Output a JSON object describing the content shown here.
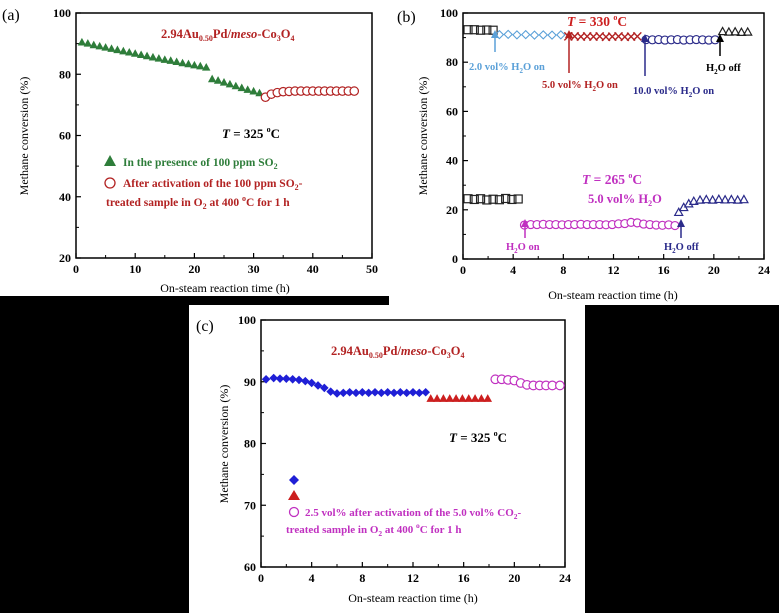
{
  "chart_data": [
    {
      "panel": "(a)",
      "type": "scatter",
      "title": "2.94Au0.50Pd/meso-Co3O4",
      "title_parts": {
        "a": "2.94Au",
        "b": "0.50",
        "c": "Pd/",
        "d": "meso",
        "e": "-Co",
        "f": "3",
        "g": "O",
        "h": "4"
      },
      "xlabel": "On-steam reaction time (h)",
      "ylabel": "Methane conversion (%)",
      "xlim": [
        0,
        50
      ],
      "ylim": [
        20,
        100
      ],
      "xticks": [
        0,
        10,
        20,
        30,
        40,
        50
      ],
      "yticks": [
        20,
        40,
        60,
        80,
        100
      ],
      "annotation": {
        "t": "T",
        "eq": " = 325 ",
        "deg": "o",
        "unit": "C"
      },
      "series": [
        {
          "name": "In the presence of 100 ppm SO2",
          "name_parts": {
            "a": "In the presence of 100 ppm SO",
            "b": "2"
          },
          "marker": "triangle",
          "color": "#2e7d3a",
          "x": [
            1,
            2,
            3,
            4,
            5,
            6,
            7,
            8,
            9,
            10,
            11,
            12,
            13,
            14,
            15,
            16,
            17,
            18,
            19,
            20,
            21,
            22,
            23,
            24,
            25,
            26,
            27,
            28,
            29,
            30,
            31
          ],
          "y": [
            90.5,
            90.1,
            89.6,
            89.2,
            88.8,
            88.4,
            88.0,
            87.6,
            87.2,
            86.8,
            86.4,
            86.0,
            85.6,
            85.2,
            84.8,
            84.5,
            84.1,
            83.7,
            83.4,
            83.0,
            82.7,
            82.3,
            78.5,
            78.0,
            77.4,
            76.8,
            76.2,
            75.6,
            75.0,
            74.5,
            73.9
          ]
        },
        {
          "name": "After activation of the 100 ppm SO2-treated sample in O2 at 400 oC for 1 h",
          "name_line1": {
            "a": "After activation of the 100 ppm SO",
            "b": "2",
            "c": "-"
          },
          "name_line2": {
            "a": "treated sample in O",
            "b": "2",
            "c": " at 400 ",
            "d": "o",
            "e": "C for 1 h"
          },
          "marker": "circle-open",
          "color": "#b22222",
          "x": [
            32,
            33,
            34,
            35,
            36,
            37,
            38,
            39,
            40,
            41,
            42,
            43,
            44,
            45,
            46,
            47
          ],
          "y": [
            72.5,
            73.5,
            74.0,
            74.3,
            74.4,
            74.5,
            74.5,
            74.5,
            74.5,
            74.5,
            74.5,
            74.5,
            74.5,
            74.5,
            74.5,
            74.5
          ]
        }
      ]
    },
    {
      "panel": "(b)",
      "type": "scatter",
      "xlabel": "On-steam reaction time (h)",
      "ylabel": "Methane conversion (%)",
      "xlim": [
        0,
        24
      ],
      "ylim": [
        0,
        100
      ],
      "xticks": [
        0,
        4,
        8,
        12,
        16,
        20,
        24
      ],
      "yticks": [
        0,
        20,
        40,
        60,
        80,
        100
      ],
      "annotations": {
        "t330": {
          "t": "T",
          "eq": " = 330 ",
          "deg": "o",
          "unit": "C"
        },
        "t265": {
          "t": "T",
          "eq": " = 265 ",
          "deg": "o",
          "unit": "C"
        },
        "vol265": {
          "a": "5.0 vol% H",
          "b": "2",
          "c": "O"
        },
        "a1": {
          "a": "2.0 vol% H",
          "b": "2",
          "c": "O on"
        },
        "a2": {
          "a": "5.0 vol% H",
          "b": "2",
          "c": "O on"
        },
        "a3": {
          "a": "10.0 vol% H",
          "b": "2",
          "c": "O on"
        },
        "a4": {
          "a": "H",
          "b": "2",
          "c": "O off"
        },
        "a5": {
          "a": "H",
          "b": "2",
          "c": "O on"
        },
        "a6": {
          "a": "H",
          "b": "2",
          "c": "O off"
        }
      },
      "series": [
        {
          "marker": "square-open",
          "color": "#222222",
          "x": [
            0.4,
            0.9,
            1.4,
            1.9,
            2.4
          ],
          "y": [
            93.2,
            93.2,
            93.0,
            93.1,
            93.0
          ]
        },
        {
          "marker": "diamond-open",
          "color": "#5aa0d8",
          "x": [
            2.9,
            3.6,
            4.3,
            5.0,
            5.7,
            6.4,
            7.1,
            7.8
          ],
          "y": [
            91.2,
            91.3,
            91.1,
            91.2,
            91.0,
            91.1,
            91.0,
            91.1
          ]
        },
        {
          "marker": "x",
          "color": "#b22222",
          "x": [
            8.4,
            8.9,
            9.4,
            9.9,
            10.4,
            10.9,
            11.4,
            11.9,
            12.4,
            12.9,
            13.4,
            13.9
          ],
          "y": [
            90.5,
            90.5,
            90.4,
            90.5,
            90.4,
            90.5,
            90.3,
            90.4,
            90.5,
            90.3,
            90.4,
            90.5
          ]
        },
        {
          "marker": "circle-open",
          "color": "#2b2b8a",
          "x": [
            14.6,
            15.1,
            15.6,
            16.1,
            16.6,
            17.1,
            17.6,
            18.1,
            18.6,
            19.1,
            19.6,
            20.1
          ],
          "y": [
            89.2,
            89.1,
            89.2,
            89.0,
            89.1,
            89.2,
            89.0,
            89.1,
            89.2,
            89.1,
            89.0,
            89.1
          ]
        },
        {
          "marker": "triangle-open",
          "color": "#222222",
          "x": [
            20.7,
            21.2,
            21.7,
            22.2,
            22.7
          ],
          "y": [
            92.5,
            92.3,
            92.4,
            92.2,
            92.3
          ]
        },
        {
          "marker": "square-open",
          "color": "#222222",
          "x": [
            0.4,
            0.9,
            1.4,
            1.9,
            2.4,
            2.9,
            3.4,
            3.9,
            4.4
          ],
          "y": [
            24.5,
            24.2,
            24.5,
            24.0,
            24.3,
            24.1,
            24.6,
            24.2,
            24.4
          ]
        },
        {
          "marker": "circle-open",
          "color": "#c030c0",
          "x": [
            4.9,
            5.4,
            5.9,
            6.4,
            6.9,
            7.4,
            7.9,
            8.4,
            8.9,
            9.4,
            9.9,
            10.4,
            10.9,
            11.4,
            11.9,
            12.4,
            12.9,
            13.4,
            13.9,
            14.4,
            14.9,
            15.4,
            15.9,
            16.4,
            16.9
          ],
          "y": [
            13.8,
            14.0,
            14.0,
            14.1,
            14.0,
            14.0,
            13.9,
            14.0,
            14.0,
            14.1,
            14.0,
            14.0,
            14.0,
            13.9,
            14.0,
            14.3,
            14.4,
            14.9,
            14.7,
            14.2,
            14.0,
            13.8,
            13.7,
            13.9,
            13.6
          ]
        },
        {
          "marker": "triangle-open",
          "color": "#2b2b8a",
          "x": [
            17.2,
            17.6,
            18.0,
            18.4,
            18.9,
            19.4,
            19.9,
            20.4,
            20.9,
            21.4,
            21.9,
            22.4
          ],
          "y": [
            19.0,
            21.0,
            22.5,
            23.5,
            24.0,
            24.2,
            24.0,
            24.3,
            24.1,
            24.2,
            24.0,
            24.2
          ]
        }
      ]
    },
    {
      "panel": "(c)",
      "type": "scatter",
      "title_parts": {
        "a": "2.94Au",
        "b": "0.50",
        "c": "Pd/",
        "d": "meso",
        "e": "-Co",
        "f": "3",
        "g": "O",
        "h": "4"
      },
      "xlabel": "On-steam reaction time (h)",
      "ylabel": "Methane conversion (%)",
      "xlim": [
        0,
        24
      ],
      "ylim": [
        60,
        100
      ],
      "xticks": [
        0,
        4,
        8,
        12,
        16,
        20,
        24
      ],
      "yticks": [
        60,
        70,
        80,
        90,
        100
      ],
      "annotation": {
        "t": "T",
        "eq": " = 325 ",
        "deg": "o",
        "unit": "C"
      },
      "legend_line1": {
        "a": "2.5 vol% after activation of the 5.0 vol% CO",
        "b": "2",
        "c": "-"
      },
      "legend_line2": {
        "a": "treated sample in O",
        "b": "2",
        "c": " at 400 ",
        "d": "o",
        "e": "C for 1 h"
      },
      "series": [
        {
          "marker": "diamond",
          "color": "#1f1fd6",
          "x": [
            0.4,
            1.0,
            1.5,
            2.0,
            2.5,
            3.0,
            3.5,
            4.0,
            4.5,
            5.0,
            5.5,
            6.0,
            6.5,
            7.0,
            7.5,
            8.0,
            8.5,
            9.0,
            9.5,
            10.0,
            10.5,
            11.0,
            11.5,
            12.0,
            12.5,
            13.0
          ],
          "y": [
            90.4,
            90.6,
            90.5,
            90.5,
            90.4,
            90.3,
            90.1,
            89.8,
            89.4,
            89.0,
            88.4,
            88.1,
            88.2,
            88.3,
            88.2,
            88.3,
            88.2,
            88.3,
            88.2,
            88.3,
            88.2,
            88.3,
            88.2,
            88.3,
            88.2,
            88.3
          ]
        },
        {
          "marker": "triangle",
          "color": "#cc1f1f",
          "x": [
            13.4,
            13.9,
            14.4,
            14.9,
            15.4,
            15.9,
            16.4,
            16.9,
            17.4,
            17.9
          ],
          "y": [
            87.3,
            87.3,
            87.3,
            87.3,
            87.3,
            87.3,
            87.3,
            87.3,
            87.3,
            87.3
          ]
        },
        {
          "marker": "circle-open",
          "color": "#c030c0",
          "x": [
            18.5,
            19.0,
            19.5,
            20.0,
            20.5,
            21.0,
            21.5,
            22.0,
            22.5,
            23.0,
            23.6
          ],
          "y": [
            90.4,
            90.4,
            90.3,
            90.2,
            89.8,
            89.5,
            89.4,
            89.4,
            89.4,
            89.4,
            89.4
          ]
        }
      ]
    }
  ]
}
